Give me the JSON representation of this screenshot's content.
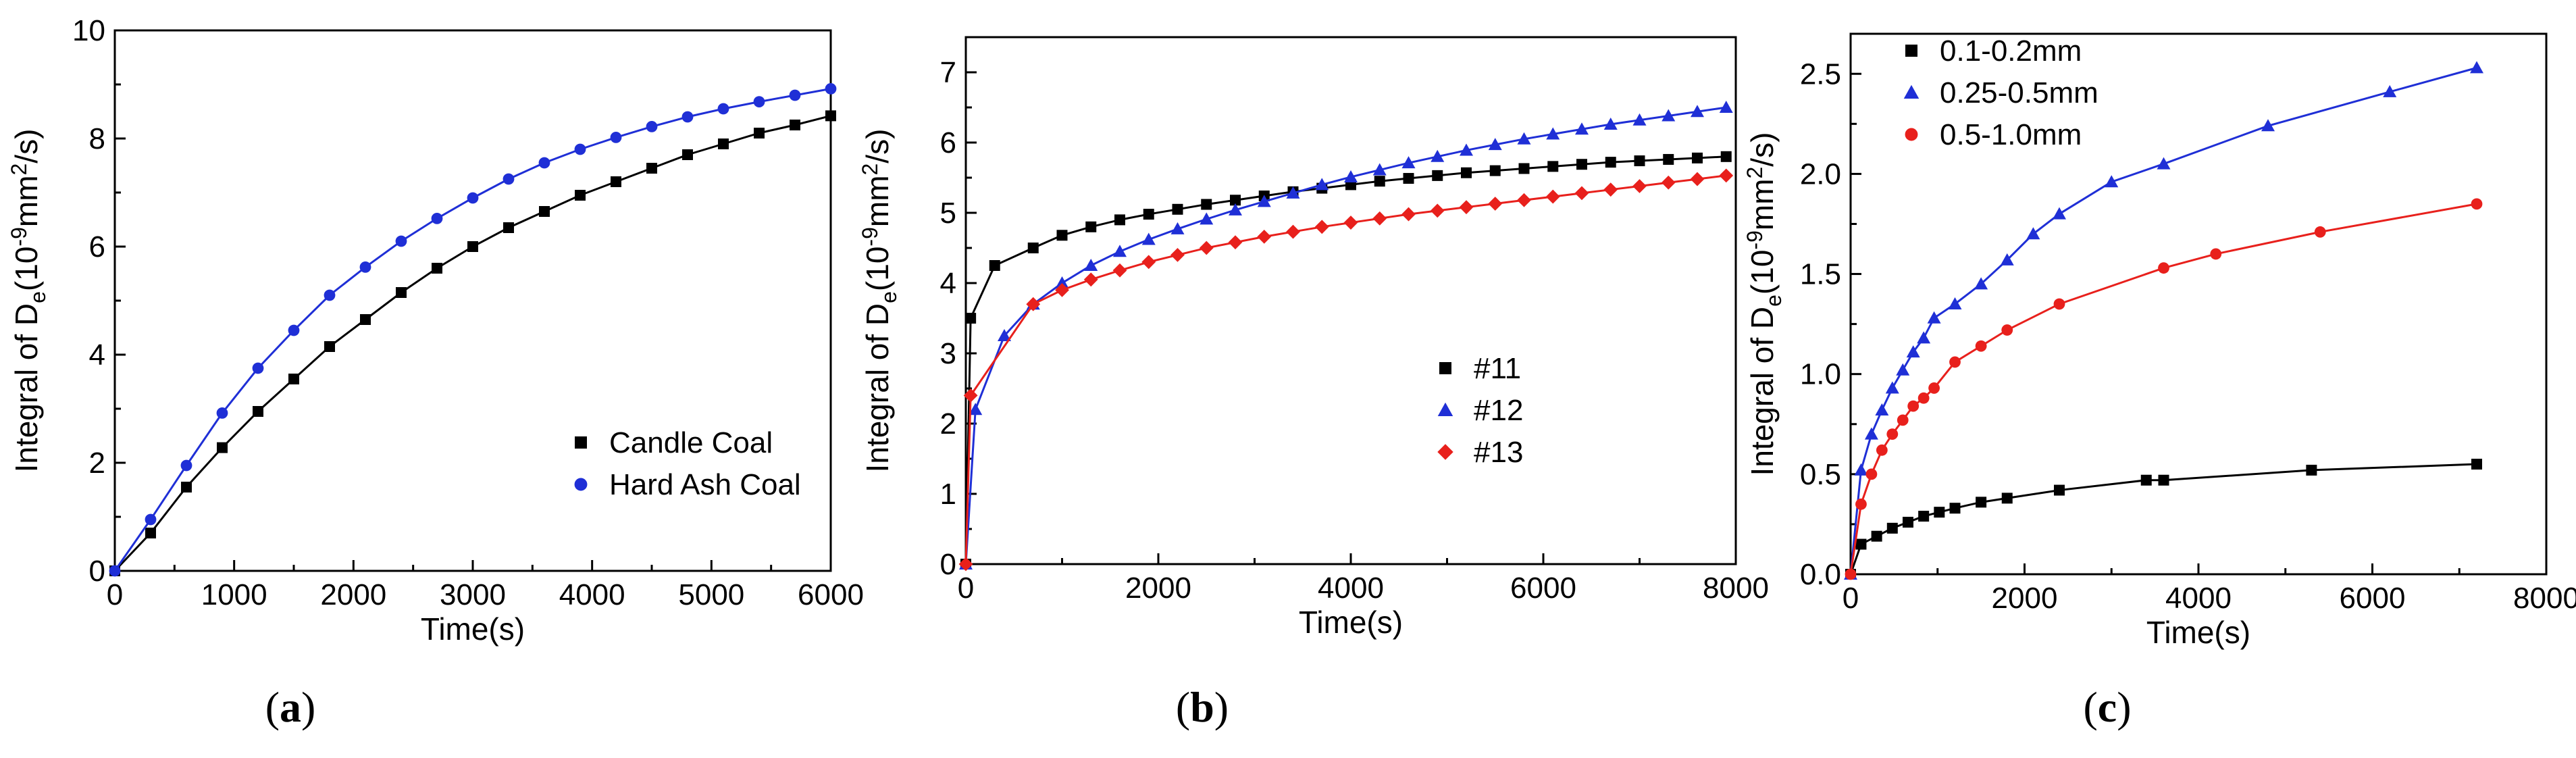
{
  "chart_data": [
    {
      "panel": "a",
      "type": "scatter",
      "title": "",
      "xlabel": "Time(s)",
      "ylabel_parts": [
        "Integral of D",
        "e",
        "(10",
        "-9",
        "mm",
        "2",
        "/s)"
      ],
      "xlim": [
        0,
        6000
      ],
      "ylim": [
        0,
        10
      ],
      "xticks": [
        0,
        1000,
        2000,
        3000,
        4000,
        5000,
        6000
      ],
      "yticks": [
        0,
        2,
        4,
        6,
        8,
        10
      ],
      "legend_position": "bottom-right",
      "series": [
        {
          "name": "Candle Coal",
          "color": "#000000",
          "marker": "square",
          "x": [
            0,
            300,
            600,
            900,
            1200,
            1500,
            1800,
            2100,
            2400,
            2700,
            3000,
            3300,
            3600,
            3900,
            4200,
            4500,
            4800,
            5100,
            5400,
            5700,
            6000
          ],
          "y": [
            0,
            0.7,
            1.55,
            2.28,
            2.95,
            3.55,
            4.15,
            4.65,
            5.15,
            5.6,
            6.0,
            6.35,
            6.65,
            6.95,
            7.2,
            7.45,
            7.7,
            7.9,
            8.1,
            8.25,
            8.42
          ]
        },
        {
          "name": "Hard Ash Coal",
          "color": "#1f2fd6",
          "marker": "circle",
          "x": [
            0,
            300,
            600,
            900,
            1200,
            1500,
            1800,
            2100,
            2400,
            2700,
            3000,
            3300,
            3600,
            3900,
            4200,
            4500,
            4800,
            5100,
            5400,
            5700,
            6000
          ],
          "y": [
            0,
            0.95,
            1.95,
            2.92,
            3.75,
            4.45,
            5.1,
            5.62,
            6.1,
            6.52,
            6.9,
            7.25,
            7.55,
            7.8,
            8.02,
            8.22,
            8.4,
            8.55,
            8.68,
            8.8,
            8.92
          ]
        }
      ]
    },
    {
      "panel": "b",
      "type": "scatter",
      "title": "",
      "xlabel": "Time(s)",
      "ylabel_parts": [
        "Integral of D",
        "e",
        "(10",
        "-9",
        "mm",
        "2",
        "/s)"
      ],
      "xlim": [
        0,
        8000
      ],
      "ylim": [
        0,
        7.5
      ],
      "xticks": [
        0,
        2000,
        4000,
        6000,
        8000
      ],
      "yticks": [
        0,
        1,
        2,
        3,
        4,
        5,
        6,
        7
      ],
      "legend_position": "bottom-right",
      "series": [
        {
          "name": "#11",
          "color": "#000000",
          "marker": "square",
          "x": [
            0,
            50,
            300,
            700,
            1000,
            1300,
            1600,
            1900,
            2200,
            2500,
            2800,
            3100,
            3400,
            3700,
            4000,
            4300,
            4600,
            4900,
            5200,
            5500,
            5800,
            6100,
            6400,
            6700,
            7000,
            7300,
            7600,
            7900
          ],
          "y": [
            0,
            3.5,
            4.25,
            4.5,
            4.68,
            4.8,
            4.9,
            4.98,
            5.05,
            5.12,
            5.18,
            5.24,
            5.3,
            5.35,
            5.4,
            5.45,
            5.49,
            5.53,
            5.57,
            5.6,
            5.63,
            5.66,
            5.69,
            5.72,
            5.74,
            5.76,
            5.78,
            5.8
          ]
        },
        {
          "name": "#12",
          "color": "#1f2fd6",
          "marker": "triangle",
          "x": [
            0,
            100,
            400,
            700,
            1000,
            1300,
            1600,
            1900,
            2200,
            2500,
            2800,
            3100,
            3400,
            3700,
            4000,
            4300,
            4600,
            4900,
            5200,
            5500,
            5800,
            6100,
            6400,
            6700,
            7000,
            7300,
            7600,
            7900
          ],
          "y": [
            0,
            2.2,
            3.25,
            3.7,
            4.0,
            4.25,
            4.45,
            4.62,
            4.77,
            4.91,
            5.04,
            5.16,
            5.28,
            5.4,
            5.51,
            5.61,
            5.71,
            5.8,
            5.89,
            5.97,
            6.05,
            6.12,
            6.19,
            6.26,
            6.32,
            6.38,
            6.44,
            6.5
          ]
        },
        {
          "name": "#13",
          "color": "#e8201c",
          "marker": "diamond",
          "x": [
            0,
            50,
            700,
            1000,
            1300,
            1600,
            1900,
            2200,
            2500,
            2800,
            3100,
            3400,
            3700,
            4000,
            4300,
            4600,
            4900,
            5200,
            5500,
            5800,
            6100,
            6400,
            6700,
            7000,
            7300,
            7600,
            7900
          ],
          "y": [
            0,
            2.4,
            3.7,
            3.9,
            4.05,
            4.18,
            4.3,
            4.4,
            4.5,
            4.58,
            4.66,
            4.73,
            4.8,
            4.86,
            4.92,
            4.98,
            5.03,
            5.08,
            5.13,
            5.18,
            5.23,
            5.28,
            5.33,
            5.38,
            5.43,
            5.48,
            5.53
          ]
        }
      ]
    },
    {
      "panel": "c",
      "type": "scatter",
      "title": "",
      "xlabel": "Time(s)",
      "ylabel_parts": [
        "Integral of D",
        "e",
        "(10",
        "-9",
        "mm",
        "2",
        "/s)"
      ],
      "xlim": [
        0,
        8000
      ],
      "ylim": [
        0,
        2.7
      ],
      "xticks": [
        0,
        2000,
        4000,
        6000,
        8000
      ],
      "yticks": [
        0.0,
        0.5,
        1.0,
        1.5,
        2.0,
        2.5
      ],
      "ytick_decimals": 1,
      "legend_position": "top-left",
      "series": [
        {
          "name": "0.1-0.2mm",
          "color": "#000000",
          "marker": "square",
          "x": [
            0,
            120,
            300,
            480,
            660,
            840,
            1020,
            1200,
            1500,
            1800,
            2400,
            3400,
            3600,
            5300,
            7200
          ],
          "y": [
            0,
            0.15,
            0.19,
            0.23,
            0.26,
            0.29,
            0.31,
            0.33,
            0.36,
            0.38,
            0.42,
            0.47,
            0.47,
            0.52,
            0.55
          ]
        },
        {
          "name": "0.25-0.5mm",
          "color": "#1f2fd6",
          "marker": "triangle",
          "x": [
            0,
            120,
            240,
            360,
            480,
            600,
            720,
            840,
            960,
            1200,
            1500,
            1800,
            2100,
            2400,
            3000,
            3600,
            4800,
            6200,
            7200
          ],
          "y": [
            0,
            0.52,
            0.7,
            0.82,
            0.93,
            1.02,
            1.11,
            1.18,
            1.28,
            1.35,
            1.45,
            1.57,
            1.7,
            1.8,
            1.96,
            2.05,
            2.24,
            2.41,
            2.53
          ]
        },
        {
          "name": "0.5-1.0mm",
          "color": "#e8201c",
          "marker": "circle",
          "x": [
            0,
            120,
            240,
            360,
            480,
            600,
            720,
            840,
            960,
            1200,
            1500,
            1800,
            2400,
            3600,
            4200,
            5400,
            7200
          ],
          "y": [
            0,
            0.35,
            0.5,
            0.62,
            0.7,
            0.77,
            0.84,
            0.88,
            0.93,
            1.06,
            1.14,
            1.22,
            1.35,
            1.53,
            1.6,
            1.71,
            1.85
          ]
        }
      ]
    }
  ],
  "panel_labels": [
    "a",
    "b",
    "c"
  ]
}
